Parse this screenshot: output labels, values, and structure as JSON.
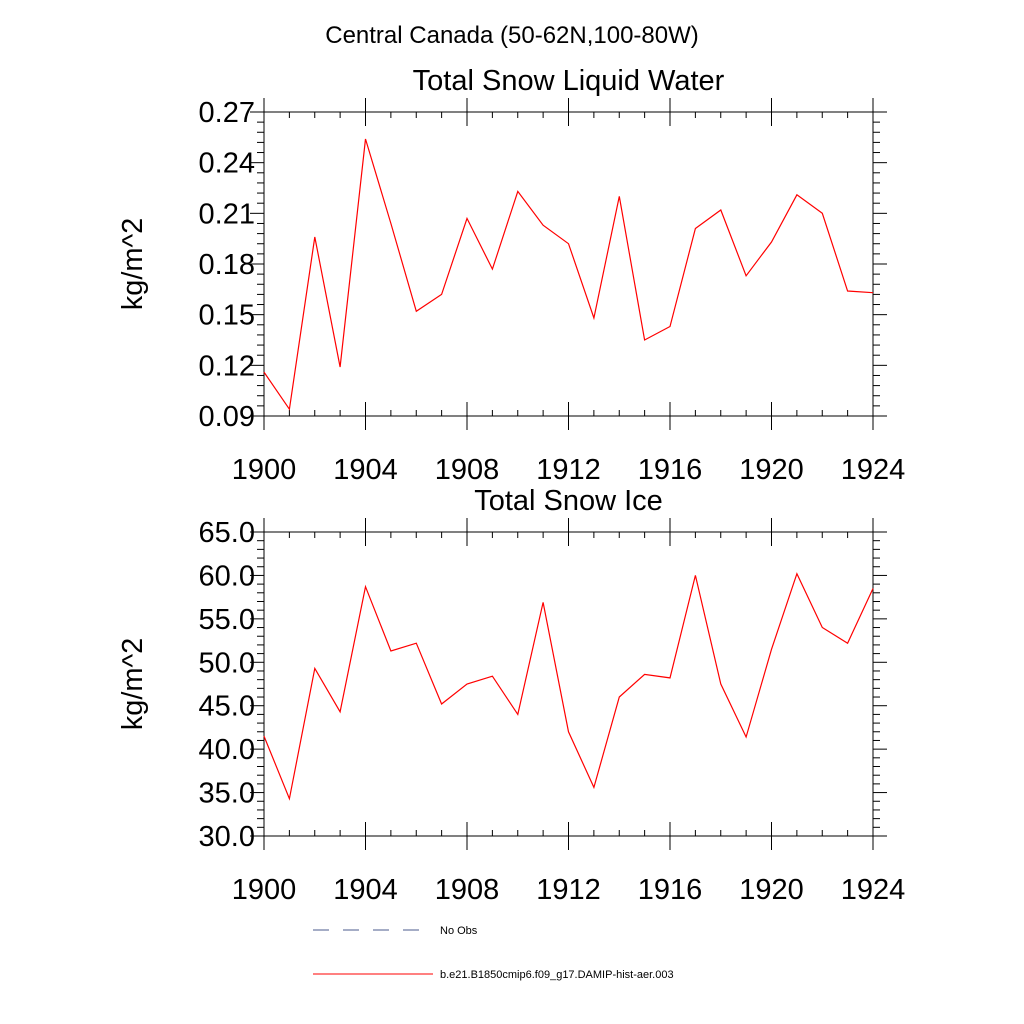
{
  "figure": {
    "title": "Central Canada (50-62N,100-80W)"
  },
  "legend": {
    "placement": "bottom",
    "entries": [
      {
        "label": "No Obs",
        "color": "#4b5b8c",
        "style": "dashed"
      },
      {
        "label": "b.e21.B1850cmip6.f09_g17.DAMIP-hist-aer.003",
        "color": "#ff0000",
        "style": "solid"
      }
    ]
  },
  "chart_data": [
    {
      "type": "line",
      "title": "Total Snow Liquid Water",
      "xlabel": "",
      "ylabel": "kg/m^2",
      "xlim": [
        1900,
        1924
      ],
      "ylim": [
        0.09,
        0.27
      ],
      "x_ticks": [
        "1900",
        "1904",
        "1908",
        "1912",
        "1916",
        "1920",
        "1924"
      ],
      "y_ticks": [
        "0.09",
        "0.12",
        "0.15",
        "0.18",
        "0.21",
        "0.24",
        "0.27"
      ],
      "grid": false,
      "series": [
        {
          "name": "b.e21.B1850cmip6.f09_g17.DAMIP-hist-aer.003",
          "color": "#ff0000",
          "x": [
            1900,
            1901,
            1902,
            1903,
            1904,
            1905,
            1906,
            1907,
            1908,
            1909,
            1910,
            1911,
            1912,
            1913,
            1914,
            1915,
            1916,
            1917,
            1918,
            1919,
            1920,
            1921,
            1922,
            1923,
            1924
          ],
          "y": [
            0.116,
            0.094,
            0.196,
            0.119,
            0.254,
            0.204,
            0.152,
            0.162,
            0.207,
            0.177,
            0.223,
            0.203,
            0.192,
            0.148,
            0.22,
            0.135,
            0.143,
            0.201,
            0.212,
            0.173,
            0.193,
            0.221,
            0.21,
            0.164,
            0.163
          ]
        }
      ]
    },
    {
      "type": "line",
      "title": "Total Snow Ice",
      "xlabel": "",
      "ylabel": "kg/m^2",
      "xlim": [
        1900,
        1924
      ],
      "ylim": [
        30.0,
        65.0
      ],
      "x_ticks": [
        "1900",
        "1904",
        "1908",
        "1912",
        "1916",
        "1920",
        "1924"
      ],
      "y_ticks": [
        "30.0",
        "35.0",
        "40.0",
        "45.0",
        "50.0",
        "55.0",
        "60.0",
        "65.0"
      ],
      "grid": false,
      "series": [
        {
          "name": "b.e21.B1850cmip6.f09_g17.DAMIP-hist-aer.003",
          "color": "#ff0000",
          "x": [
            1900,
            1901,
            1902,
            1903,
            1904,
            1905,
            1906,
            1907,
            1908,
            1909,
            1910,
            1911,
            1912,
            1913,
            1914,
            1915,
            1916,
            1917,
            1918,
            1919,
            1920,
            1921,
            1922,
            1923,
            1924
          ],
          "y": [
            41.5,
            34.3,
            49.3,
            44.3,
            58.7,
            51.3,
            52.2,
            45.2,
            47.5,
            48.4,
            44.0,
            56.9,
            42.0,
            35.6,
            46.0,
            48.6,
            48.2,
            60.0,
            47.5,
            41.4,
            51.5,
            60.2,
            54.0,
            52.2,
            58.5
          ]
        }
      ]
    }
  ]
}
